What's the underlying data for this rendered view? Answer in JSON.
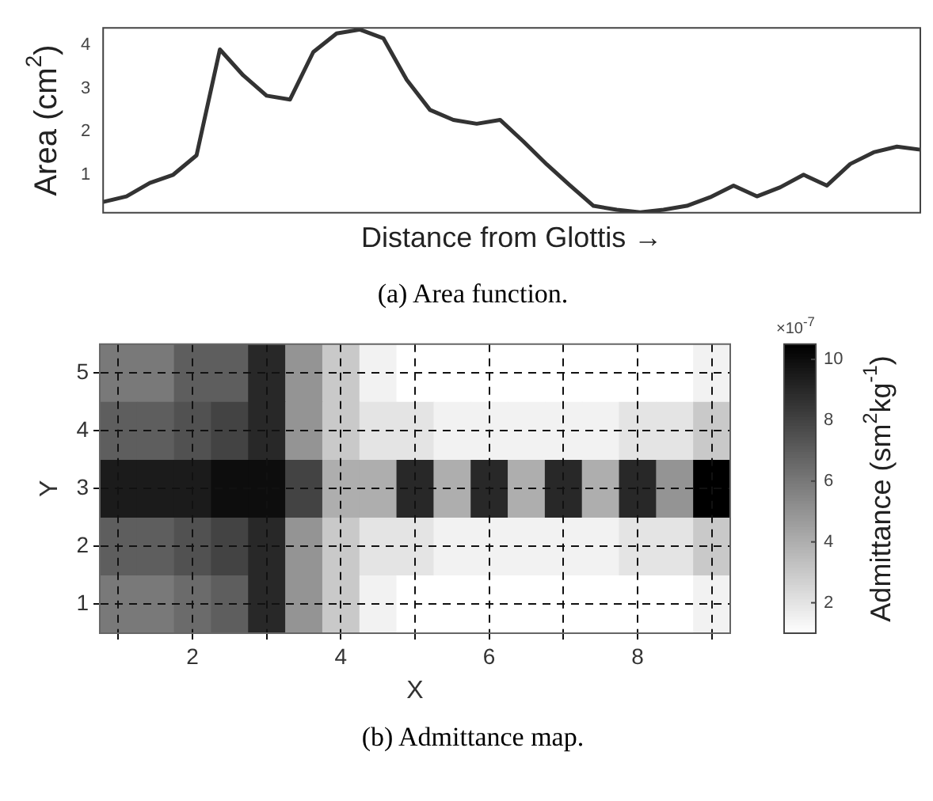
{
  "chart_data": [
    {
      "type": "line",
      "xlabel": "Distance from Glottis →",
      "ylabel": "Area (cm$^{2}$)",
      "annotations": [
        "(a) Area function."
      ],
      "categories": [
        null,
        null,
        null,
        null,
        null,
        null,
        null,
        null,
        null,
        null,
        null,
        null,
        null,
        null,
        null,
        null,
        null,
        null,
        null,
        null,
        null,
        null,
        null,
        null,
        null,
        null,
        null,
        null,
        null,
        null,
        null,
        null,
        null,
        null,
        null,
        null
      ],
      "series": [
        {
          "color": "#333333",
          "values": [
            0.37,
            0.5,
            0.81,
            1.0,
            1.45,
            3.9,
            3.3,
            2.83,
            2.74,
            3.84,
            4.27,
            4.36,
            4.16,
            3.2,
            2.5,
            2.27,
            2.18,
            2.27,
            1.77,
            1.24,
            0.75,
            0.28,
            0.19,
            0.13,
            0.19,
            0.28,
            0.48,
            0.75,
            0.5,
            0.71,
            1.0,
            0.75,
            1.25,
            1.52,
            1.65,
            1.58
          ]
        }
      ],
      "ylim": [
        0.12,
        4.4
      ],
      "yticks": [
        1,
        2,
        3,
        4
      ],
      "grid": false,
      "legend": false,
      "tick_labels": "y",
      "marker": "none",
      "line_style": "solid"
    },
    {
      "type": "heatmap",
      "xlabel": "X",
      "ylabel": "Y",
      "clabel": "Admittance (sm$^{2}$kg$^{-1}$)",
      "annotations": [
        "×10$^{-7}$",
        "(b) Admittance map."
      ],
      "categories": [
        null,
        null,
        "2",
        null,
        null,
        null,
        "4",
        null,
        null,
        null,
        "6",
        null,
        null,
        null,
        "8",
        null,
        null
      ],
      "y_categories": [
        "5",
        "4",
        "3",
        "2",
        "1"
      ],
      "cells": [
        [
          6,
          6,
          7,
          7,
          9,
          5,
          3,
          1.5,
          1,
          1,
          1,
          1,
          1,
          1,
          1,
          1,
          1.5
        ],
        [
          7,
          7,
          7.5,
          8,
          9,
          5,
          3,
          2,
          2,
          1.5,
          1.5,
          1.5,
          1.5,
          1.5,
          2,
          2,
          3
        ],
        [
          9.5,
          9.5,
          9.5,
          10,
          10,
          8,
          4,
          4,
          9,
          4,
          9,
          4,
          9,
          4,
          9,
          5,
          10.5
        ],
        [
          7,
          7,
          7.5,
          8,
          9,
          5,
          3,
          2,
          2,
          1.5,
          1.5,
          1.5,
          1.5,
          1.5,
          2,
          2,
          3
        ],
        [
          6,
          6,
          6.5,
          7,
          9,
          5,
          3,
          1.5,
          1,
          1,
          1,
          1,
          1,
          1,
          1,
          1,
          1.5
        ]
      ],
      "clim": [
        1,
        10.5
      ],
      "cticks": [
        2,
        4,
        6,
        8,
        10
      ],
      "grid": true
    }
  ]
}
